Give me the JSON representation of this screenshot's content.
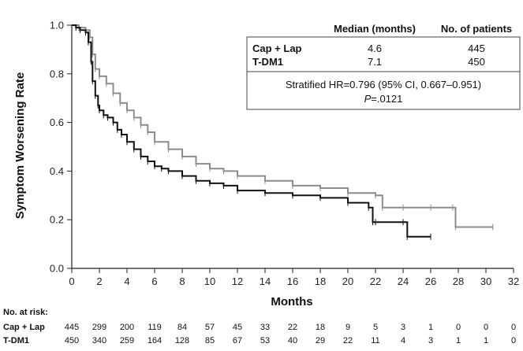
{
  "chart_data": {
    "type": "line",
    "subtype": "kaplan-meier",
    "title": "",
    "xlabel": "Months",
    "ylabel": "Symptom Worsening Rate",
    "xlim": [
      0,
      32
    ],
    "ylim": [
      0,
      1.0
    ],
    "x_ticks": [
      "0",
      "2",
      "4",
      "6",
      "8",
      "10",
      "12",
      "14",
      "16",
      "18",
      "20",
      "22",
      "24",
      "26",
      "28",
      "30",
      "32"
    ],
    "y_ticks": [
      "0.0",
      "0.2",
      "0.4",
      "0.6",
      "0.8",
      "1.0"
    ],
    "grid": false,
    "series": [
      {
        "name": "Cap + Lap",
        "color": "#111111",
        "x": [
          0,
          0.3,
          0.6,
          1.0,
          1.2,
          1.4,
          1.5,
          1.7,
          1.9,
          2.0,
          2.3,
          2.6,
          3.0,
          3.3,
          3.6,
          4.0,
          4.5,
          5.0,
          5.5,
          6.0,
          6.5,
          7.0,
          8.0,
          9.0,
          10.0,
          11.0,
          12.0,
          14.0,
          16.0,
          18.0,
          20.0,
          21.5,
          21.8,
          22.0,
          24.0,
          24.3,
          26.0
        ],
        "y": [
          1.0,
          0.99,
          0.98,
          0.97,
          0.93,
          0.85,
          0.77,
          0.71,
          0.67,
          0.65,
          0.63,
          0.62,
          0.6,
          0.57,
          0.55,
          0.52,
          0.49,
          0.46,
          0.44,
          0.42,
          0.41,
          0.4,
          0.38,
          0.36,
          0.35,
          0.34,
          0.32,
          0.31,
          0.3,
          0.29,
          0.27,
          0.25,
          0.19,
          0.19,
          0.19,
          0.13,
          0.13
        ]
      },
      {
        "name": "T-DM1",
        "color": "#8c8c8c",
        "x": [
          0,
          0.5,
          1.0,
          1.3,
          1.5,
          1.7,
          2.0,
          2.5,
          3.0,
          3.5,
          4.0,
          4.5,
          5.0,
          5.5,
          6.0,
          7.0,
          8.0,
          9.0,
          10.0,
          11.0,
          12.0,
          14.0,
          16.0,
          18.0,
          20.0,
          22.0,
          22.5,
          24.0,
          26.0,
          27.6,
          27.8,
          30.5
        ],
        "y": [
          1.0,
          0.99,
          0.98,
          0.95,
          0.88,
          0.82,
          0.79,
          0.76,
          0.72,
          0.68,
          0.65,
          0.62,
          0.59,
          0.56,
          0.52,
          0.49,
          0.46,
          0.43,
          0.41,
          0.4,
          0.38,
          0.36,
          0.34,
          0.33,
          0.31,
          0.3,
          0.25,
          0.25,
          0.25,
          0.25,
          0.17,
          0.17
        ]
      }
    ],
    "legend": {
      "position": "top-right",
      "header_median": "Median (months)",
      "header_patients": "No. of patients",
      "rows": [
        {
          "name": "Cap + Lap",
          "median": "4.6",
          "patients": "445",
          "color": "#111111"
        },
        {
          "name": "T-DM1",
          "median": "7.1",
          "patients": "450",
          "color": "#8c8c8c"
        }
      ],
      "hr_text": "Stratified HR=0.796 (95% CI, 0.667–0.951)",
      "p_label": "P",
      "p_value": "=.0121"
    },
    "risk_table": {
      "title": "No. at risk:",
      "rows": [
        {
          "name": "Cap + Lap",
          "color": "#111111",
          "values": [
            "445",
            "299",
            "200",
            "119",
            "84",
            "57",
            "45",
            "33",
            "22",
            "18",
            "9",
            "5",
            "3",
            "1",
            "0",
            "0",
            "0"
          ]
        },
        {
          "name": "T-DM1",
          "color": "#8c8c8c",
          "values": [
            "450",
            "340",
            "259",
            "164",
            "128",
            "85",
            "67",
            "53",
            "40",
            "29",
            "22",
            "11",
            "4",
            "3",
            "1",
            "1",
            "0"
          ]
        }
      ]
    }
  }
}
